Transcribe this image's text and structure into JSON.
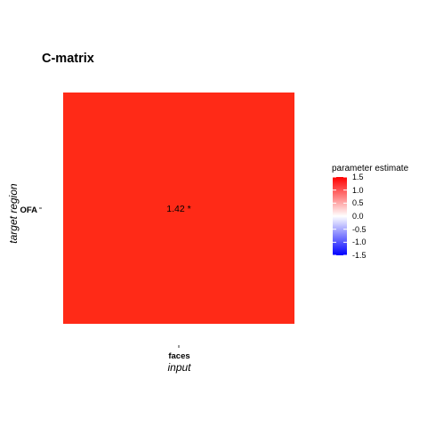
{
  "chart_data": {
    "type": "heatmap",
    "title": "C-matrix",
    "xlabel": "input",
    "ylabel": "target region",
    "x_categories": [
      "faces"
    ],
    "y_categories": [
      "OFA"
    ],
    "cells": [
      {
        "x": "faces",
        "y": "OFA",
        "value": 1.42,
        "label": "1.42 *",
        "color": "#ff2a17"
      }
    ],
    "legend": {
      "title": "parameter estimate",
      "position": "right",
      "range": [
        -1.5,
        1.5
      ],
      "ticks": [
        1.5,
        1.0,
        0.5,
        0.0,
        -0.5,
        -1.0,
        -1.5
      ],
      "tick_labels": [
        "1.5",
        "1.0",
        "0.5",
        "0.0",
        "-0.5",
        "-1.0",
        "-1.5"
      ],
      "colors": {
        "high": "#ff0000",
        "mid": "#ffffff",
        "low": "#0000ff"
      }
    },
    "grid": false
  }
}
